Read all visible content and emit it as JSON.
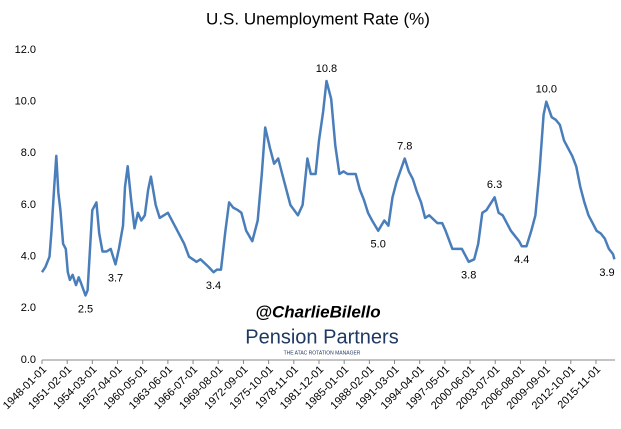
{
  "chart_data": {
    "type": "line",
    "title": "U.S. Unemployment Rate (%)",
    "series": [
      {
        "color": "#4a7ebb",
        "x": [
          "1948-01-01",
          "1948-06-01",
          "1948-12-01",
          "1949-03-01",
          "1949-07-01",
          "1949-10-01",
          "1950-01-01",
          "1950-04-01",
          "1950-08-01",
          "1950-12-01",
          "1951-03-01",
          "1951-06-01",
          "1951-10-01",
          "1952-03-01",
          "1952-07-01",
          "1952-10-01",
          "1953-05-01",
          "1953-08-01",
          "1953-12-01",
          "1954-03-01",
          "1954-09-01",
          "1955-01-01",
          "1955-06-01",
          "1955-12-01",
          "1956-06-01",
          "1957-01-01",
          "1957-06-01",
          "1957-12-01",
          "1958-03-01",
          "1958-07-01",
          "1958-12-01",
          "1959-05-01",
          "1959-10-01",
          "1960-03-01",
          "1960-08-01",
          "1961-01-01",
          "1961-05-01",
          "1961-12-01",
          "1962-06-01",
          "1963-06-01",
          "1964-06-01",
          "1965-06-01",
          "1966-01-01",
          "1966-12-01",
          "1967-06-01",
          "1968-06-01",
          "1969-01-01",
          "1969-06-01",
          "1969-12-01",
          "1970-06-01",
          "1970-12-01",
          "1971-06-01",
          "1972-01-01",
          "1972-06-01",
          "1973-01-01",
          "1973-10-01",
          "1974-06-01",
          "1974-12-01",
          "1975-05-01",
          "1975-12-01",
          "1976-06-01",
          "1976-12-01",
          "1977-06-01",
          "1978-06-01",
          "1979-05-01",
          "1979-12-01",
          "1980-07-01",
          "1980-12-01",
          "1981-07-01",
          "1981-12-01",
          "1982-06-01",
          "1982-11-01",
          "1983-06-01",
          "1983-12-01",
          "1984-06-01",
          "1984-12-01",
          "1985-06-01",
          "1986-06-01",
          "1986-12-01",
          "1987-06-01",
          "1987-12-01",
          "1988-06-01",
          "1989-03-01",
          "1989-12-01",
          "1990-06-01",
          "1990-12-01",
          "1991-06-01",
          "1992-06-01",
          "1992-12-01",
          "1993-06-01",
          "1993-12-01",
          "1994-06-01",
          "1994-12-01",
          "1995-06-01",
          "1996-06-01",
          "1997-01-01",
          "1997-06-01",
          "1998-04-01",
          "1999-06-01",
          "2000-04-01",
          "2000-12-01",
          "2001-06-01",
          "2001-12-01",
          "2002-06-01",
          "2003-06-01",
          "2003-12-01",
          "2004-06-01",
          "2005-06-01",
          "2006-06-01",
          "2006-10-01",
          "2007-05-01",
          "2007-12-01",
          "2008-06-01",
          "2008-12-01",
          "2009-06-01",
          "2009-10-01",
          "2010-06-01",
          "2010-12-01",
          "2011-06-01",
          "2011-12-01",
          "2012-06-01",
          "2012-12-01",
          "2013-06-01",
          "2013-12-01",
          "2014-06-01",
          "2014-12-01",
          "2015-06-01",
          "2015-12-01",
          "2016-06-01",
          "2016-12-01",
          "2017-06-01",
          "2017-12-01",
          "2018-02-01"
        ],
        "values": [
          3.4,
          3.6,
          4.0,
          5.0,
          6.7,
          7.9,
          6.5,
          5.8,
          4.5,
          4.3,
          3.4,
          3.1,
          3.3,
          2.9,
          3.2,
          3.0,
          2.5,
          2.7,
          4.5,
          5.8,
          6.1,
          4.9,
          4.2,
          4.2,
          4.3,
          3.7,
          4.3,
          5.2,
          6.7,
          7.5,
          6.2,
          5.1,
          5.7,
          5.4,
          5.6,
          6.6,
          7.1,
          6.0,
          5.5,
          5.7,
          5.1,
          4.5,
          4.0,
          3.8,
          3.9,
          3.6,
          3.4,
          3.5,
          3.5,
          4.9,
          6.1,
          5.9,
          5.8,
          5.7,
          5.0,
          4.6,
          5.4,
          7.2,
          9.0,
          8.2,
          7.6,
          7.8,
          7.2,
          6.0,
          5.6,
          6.0,
          7.8,
          7.2,
          7.2,
          8.5,
          9.6,
          10.8,
          10.1,
          8.3,
          7.2,
          7.3,
          7.2,
          7.2,
          6.6,
          6.2,
          5.7,
          5.4,
          5.0,
          5.4,
          5.2,
          6.3,
          6.9,
          7.8,
          7.3,
          7.0,
          6.5,
          6.1,
          5.5,
          5.6,
          5.3,
          5.3,
          5.0,
          4.3,
          4.3,
          3.8,
          3.9,
          4.5,
          5.7,
          5.8,
          6.3,
          5.7,
          5.6,
          5.0,
          4.6,
          4.4,
          4.4,
          5.0,
          5.6,
          7.3,
          9.5,
          10.0,
          9.4,
          9.3,
          9.1,
          8.5,
          8.2,
          7.9,
          7.5,
          6.7,
          6.1,
          5.6,
          5.3,
          5.0,
          4.9,
          4.7,
          4.3,
          4.1,
          3.9
        ]
      }
    ],
    "annotations": [
      {
        "x": "1953-05-01",
        "y": 2.5,
        "label": "2.5"
      },
      {
        "x": "1957-01-01",
        "y": 3.7,
        "label": "3.7"
      },
      {
        "x": "1969-01-01",
        "y": 3.4,
        "label": "3.4"
      },
      {
        "x": "1982-11-01",
        "y": 10.8,
        "label": "10.8"
      },
      {
        "x": "1989-03-01",
        "y": 5.0,
        "label": "5.0"
      },
      {
        "x": "1992-06-01",
        "y": 7.8,
        "label": "7.8"
      },
      {
        "x": "2000-04-01",
        "y": 3.8,
        "label": "3.8"
      },
      {
        "x": "2003-06-01",
        "y": 6.3,
        "label": "6.3"
      },
      {
        "x": "2006-10-01",
        "y": 4.4,
        "label": "4.4"
      },
      {
        "x": "2009-10-01",
        "y": 10.0,
        "label": "10.0"
      },
      {
        "x": "2018-02-01",
        "y": 3.9,
        "label": "3.9"
      }
    ],
    "xlim": [
      "1948-01-01",
      "2018-03-01"
    ],
    "xticks": [
      "1948-01-01",
      "1951-02-01",
      "1954-03-01",
      "1957-04-01",
      "1960-05-01",
      "1963-06-01",
      "1966-07-01",
      "1969-08-01",
      "1972-09-01",
      "1975-10-01",
      "1978-11-01",
      "1981-12-01",
      "1985-01-01",
      "1988-02-01",
      "1991-03-01",
      "1994-04-01",
      "1997-05-01",
      "2000-06-01",
      "2003-07-01",
      "2006-08-01",
      "2009-09-01",
      "2012-10-01",
      "2015-11-01"
    ],
    "ylim": [
      0,
      12
    ],
    "yticks": [
      {
        "value": 0,
        "label": "0.0"
      },
      {
        "value": 2,
        "label": "2.0"
      },
      {
        "value": 4,
        "label": "4.0"
      },
      {
        "value": 6,
        "label": "6.0"
      },
      {
        "value": 8,
        "label": "8.0"
      },
      {
        "value": 10,
        "label": "10.0"
      },
      {
        "value": 12,
        "label": "12.0"
      }
    ],
    "grid": false,
    "watermark": {
      "handle": "@CharlieBilello",
      "brand": "Pension Partners",
      "tagline": "THE ATAC ROTATION MANAGER"
    }
  }
}
